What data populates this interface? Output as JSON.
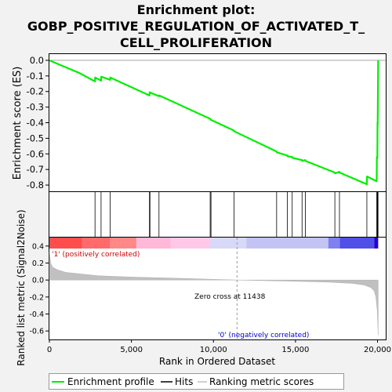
{
  "title_lines": [
    "Enrichment plot:",
    "GOBP_POSITIVE_REGULATION_OF_ACTIVATED_T_",
    "CELL_PROLIFERATION"
  ],
  "chart_data": {
    "type": "line",
    "es_axis": {
      "ylabel": "Enrichment score (ES)",
      "ylim": [
        -0.84,
        0.04
      ],
      "ticks": [
        0.0,
        -0.1,
        -0.2,
        -0.3,
        -0.4,
        -0.5,
        -0.6,
        -0.7,
        -0.8
      ]
    },
    "metric_axis": {
      "ylabel": "Ranked list metric (Signal2Noise)",
      "ylim": [
        -0.7,
        0.5
      ],
      "ticks": [
        0.4,
        0.2,
        0.0,
        -0.2,
        -0.4,
        -0.6
      ]
    },
    "x_axis": {
      "xlabel": "Rank in Ordered Dataset",
      "xlim": [
        0,
        20500
      ],
      "ticks": [
        0,
        5000,
        10000,
        15000,
        20000
      ],
      "tick_labels": [
        "0",
        "5,000",
        "10,000",
        "15,000",
        "20,000"
      ]
    },
    "enrichment_profile": {
      "x": [
        0,
        1800,
        2780,
        2790,
        3150,
        3160,
        3700,
        3710,
        6100,
        6110,
        6680,
        6690,
        9800,
        9810,
        11250,
        11260,
        13850,
        13860,
        14500,
        14510,
        14800,
        14810,
        15400,
        15410,
        15600,
        15610,
        17400,
        17410,
        17680,
        17690,
        19350,
        19360,
        19950,
        19960,
        19990,
        20000,
        20010,
        20040
      ],
      "y": [
        0.0,
        -0.08,
        -0.135,
        -0.11,
        -0.13,
        -0.105,
        -0.125,
        -0.11,
        -0.225,
        -0.205,
        -0.23,
        -0.225,
        -0.375,
        -0.38,
        -0.45,
        -0.455,
        -0.585,
        -0.59,
        -0.61,
        -0.615,
        -0.62,
        -0.625,
        -0.64,
        -0.645,
        -0.64,
        -0.645,
        -0.72,
        -0.725,
        -0.715,
        -0.72,
        -0.795,
        -0.745,
        -0.775,
        -0.62,
        -0.625,
        -0.4,
        -0.41,
        0.0
      ]
    },
    "hits": [
      2780,
      3150,
      3700,
      6100,
      6130,
      6680,
      9800,
      9850,
      11250,
      13850,
      14500,
      14800,
      15400,
      15600,
      17400,
      17680,
      19350,
      19950,
      19990,
      20010,
      20030
    ],
    "ranking_metric": {
      "x": [
        0,
        80,
        200,
        500,
        1000,
        2000,
        3000,
        5000,
        8000,
        11438,
        15000,
        17000,
        18500,
        19200,
        19600,
        19800,
        19900,
        19980,
        20040
      ],
      "y": [
        0.33,
        0.2,
        0.15,
        0.12,
        0.09,
        0.07,
        0.05,
        0.035,
        0.02,
        0.0,
        -0.015,
        -0.025,
        -0.04,
        -0.06,
        -0.09,
        -0.13,
        -0.2,
        -0.35,
        -0.65
      ]
    },
    "zero_cross": 11438,
    "annotations": {
      "positive": "'1' (positively correlated)",
      "negative": "'0' (negatively correlated)",
      "zero_cross": "Zero cross at 11438"
    },
    "legend": {
      "items": [
        "Enrichment profile",
        "Hits",
        "Ranking metric scores"
      ],
      "placement": "bottom"
    },
    "colors": {
      "profile": "#00ee00",
      "hits": "#000000",
      "metric": "#c0c0c0",
      "positive": "#ff3333",
      "negative": "#3333ff"
    }
  }
}
